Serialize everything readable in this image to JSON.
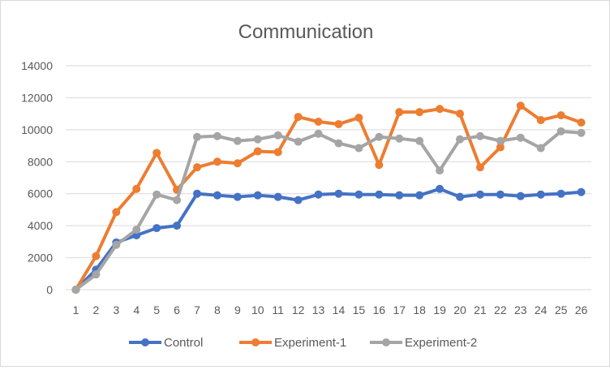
{
  "chart_data": {
    "type": "line",
    "title": "Communication",
    "xlabel": "",
    "ylabel": "",
    "ylim": [
      0,
      14000
    ],
    "yticks": [
      0,
      2000,
      4000,
      6000,
      8000,
      10000,
      12000,
      14000
    ],
    "categories": [
      "1",
      "2",
      "3",
      "4",
      "5",
      "6",
      "7",
      "8",
      "9",
      "10",
      "11",
      "12",
      "13",
      "14",
      "15",
      "16",
      "17",
      "18",
      "19",
      "20",
      "21",
      "22",
      "23",
      "24",
      "25",
      "26"
    ],
    "grid": "horizontal",
    "legend_position": "bottom",
    "series": [
      {
        "name": "Control",
        "color": "#4472C4",
        "values": [
          0,
          1250,
          2950,
          3400,
          3850,
          4000,
          6000,
          5900,
          5800,
          5900,
          5800,
          5600,
          5950,
          6000,
          5950,
          5950,
          5900,
          5900,
          6300,
          5800,
          5950,
          5950,
          5850,
          5950,
          6000,
          6100
        ]
      },
      {
        "name": "Experiment-1",
        "color": "#ED7D31",
        "values": [
          0,
          2100,
          4850,
          6300,
          8550,
          6250,
          7650,
          8000,
          7900,
          8650,
          8600,
          10800,
          10500,
          10350,
          10750,
          7800,
          11100,
          11100,
          11300,
          11000,
          7650,
          8900,
          11500,
          10600,
          10900,
          10450
        ]
      },
      {
        "name": "Experiment-2",
        "color": "#A5A5A5",
        "values": [
          0,
          950,
          2800,
          3750,
          5950,
          5600,
          9550,
          9600,
          9300,
          9400,
          9650,
          9250,
          9750,
          9150,
          8850,
          9550,
          9450,
          9300,
          7450,
          9400,
          9600,
          9300,
          9500,
          8850,
          9900,
          9800
        ]
      }
    ]
  }
}
